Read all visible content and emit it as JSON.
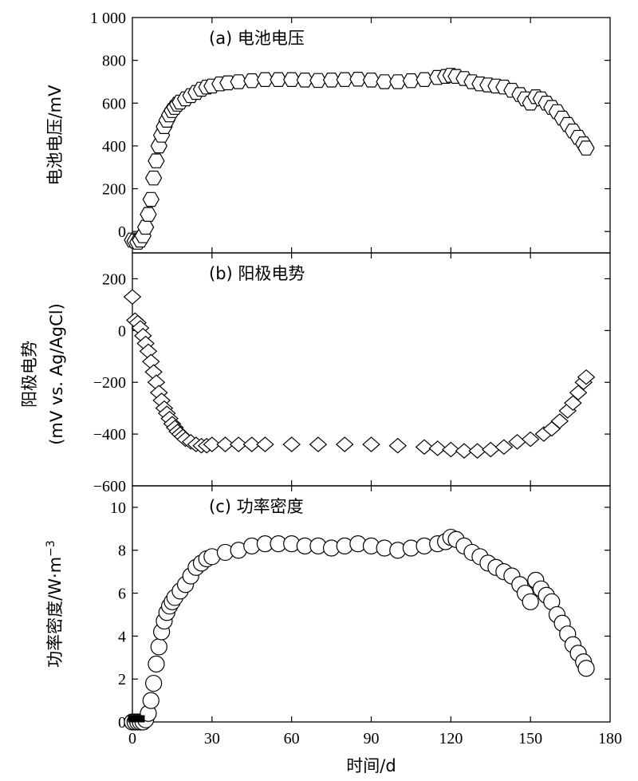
{
  "chart_data": [
    {
      "type": "scatter",
      "title": "(a) 电池电压",
      "ylabel": "电池电压/mV",
      "xlim": [
        0,
        180
      ],
      "ylim": [
        -100,
        1000
      ],
      "yticks": [
        -100,
        0,
        200,
        400,
        600,
        800,
        1000
      ],
      "ytick_labels": [
        "",
        "0",
        "200",
        "400",
        "600",
        "800",
        "1 000"
      ],
      "marker": "hexagon",
      "series": [
        {
          "x": [
            0,
            1,
            2,
            3,
            4,
            5,
            6,
            7,
            8,
            9,
            10,
            11,
            12,
            13,
            14,
            15,
            16,
            17,
            18,
            20,
            22,
            24,
            26,
            28,
            30,
            33,
            36,
            40,
            45,
            50,
            55,
            60,
            65,
            70,
            75,
            80,
            85,
            90,
            95,
            100,
            105,
            110,
            115,
            118,
            120,
            122,
            125,
            128,
            131,
            134,
            137,
            140,
            143,
            146,
            148,
            150,
            152,
            154,
            156,
            158,
            160,
            162,
            164,
            166,
            168,
            170,
            171
          ],
          "y": [
            -40,
            -45,
            -50,
            -40,
            -20,
            20,
            80,
            150,
            250,
            330,
            400,
            450,
            490,
            520,
            545,
            565,
            580,
            595,
            605,
            620,
            635,
            650,
            665,
            675,
            680,
            690,
            695,
            700,
            705,
            710,
            710,
            710,
            708,
            706,
            708,
            710,
            712,
            708,
            700,
            700,
            705,
            710,
            720,
            725,
            730,
            725,
            715,
            700,
            690,
            685,
            680,
            675,
            660,
            640,
            620,
            600,
            630,
            620,
            600,
            580,
            560,
            530,
            500,
            470,
            440,
            410,
            390
          ]
        }
      ]
    },
    {
      "type": "scatter",
      "title": "(b) 阳极电势",
      "ylabel": "阳极电势",
      "ylabel2": "(mV vs. Ag/AgCl)",
      "xlim": [
        0,
        180
      ],
      "ylim": [
        -600,
        300
      ],
      "yticks": [
        -600,
        -400,
        -200,
        0,
        200
      ],
      "ytick_labels": [
        "−600",
        "−400",
        "−200",
        "0",
        "200"
      ],
      "marker": "diamond",
      "series": [
        {
          "x": [
            0,
            1,
            2,
            3,
            4,
            5,
            6,
            7,
            8,
            9,
            10,
            11,
            12,
            13,
            14,
            15,
            16,
            17,
            18,
            19,
            20,
            22,
            24,
            26,
            28,
            30,
            35,
            40,
            45,
            50,
            60,
            70,
            80,
            90,
            100,
            110,
            115,
            120,
            125,
            130,
            135,
            140,
            145,
            150,
            155,
            158,
            161,
            164,
            166,
            168,
            170,
            171
          ],
          "y": [
            130,
            40,
            30,
            10,
            -20,
            -50,
            -80,
            -120,
            -160,
            -200,
            -240,
            -270,
            -300,
            -320,
            -340,
            -360,
            -375,
            -390,
            -400,
            -410,
            -420,
            -430,
            -440,
            -445,
            -445,
            -440,
            -440,
            -440,
            -440,
            -440,
            -440,
            -440,
            -440,
            -440,
            -445,
            -450,
            -455,
            -460,
            -465,
            -465,
            -460,
            -450,
            -430,
            -420,
            -400,
            -380,
            -350,
            -310,
            -280,
            -240,
            -200,
            -180
          ]
        }
      ]
    },
    {
      "type": "scatter",
      "title": "(c) 功率密度",
      "ylabel": "功率密度/W·m",
      "ylabel_sup": "−3",
      "xlabel": "时间/d",
      "xlim": [
        0,
        180
      ],
      "xticks": [
        0,
        30,
        60,
        90,
        120,
        150,
        180
      ],
      "ylim": [
        0,
        11
      ],
      "yticks": [
        0,
        2,
        4,
        6,
        8,
        10
      ],
      "marker": "circle",
      "series": [
        {
          "x": [
            0,
            1,
            2,
            3,
            4,
            5,
            6,
            7,
            8,
            9,
            10,
            11,
            12,
            13,
            14,
            15,
            16,
            18,
            20,
            22,
            24,
            26,
            28,
            30,
            35,
            40,
            45,
            50,
            55,
            60,
            65,
            70,
            75,
            80,
            85,
            90,
            95,
            100,
            105,
            110,
            115,
            118,
            120,
            122,
            125,
            128,
            131,
            134,
            137,
            140,
            143,
            146,
            148,
            150,
            152,
            154,
            156,
            158,
            160,
            162,
            164,
            166,
            168,
            170,
            171
          ],
          "y": [
            0,
            0,
            0,
            0,
            0,
            0.1,
            0.4,
            1.0,
            1.8,
            2.7,
            3.5,
            4.2,
            4.7,
            5.1,
            5.4,
            5.6,
            5.8,
            6.1,
            6.4,
            6.8,
            7.2,
            7.4,
            7.6,
            7.7,
            7.9,
            8.0,
            8.2,
            8.3,
            8.3,
            8.3,
            8.2,
            8.2,
            8.1,
            8.2,
            8.3,
            8.2,
            8.1,
            8.0,
            8.1,
            8.2,
            8.3,
            8.4,
            8.6,
            8.5,
            8.2,
            7.9,
            7.7,
            7.4,
            7.2,
            7.0,
            6.8,
            6.4,
            6.0,
            5.6,
            6.6,
            6.2,
            5.9,
            5.6,
            5.0,
            4.6,
            4.1,
            3.6,
            3.2,
            2.8,
            2.5
          ]
        }
      ],
      "filled_points": {
        "x": [
          0,
          1,
          2,
          3
        ],
        "y": [
          0,
          0,
          0,
          0
        ]
      }
    }
  ]
}
